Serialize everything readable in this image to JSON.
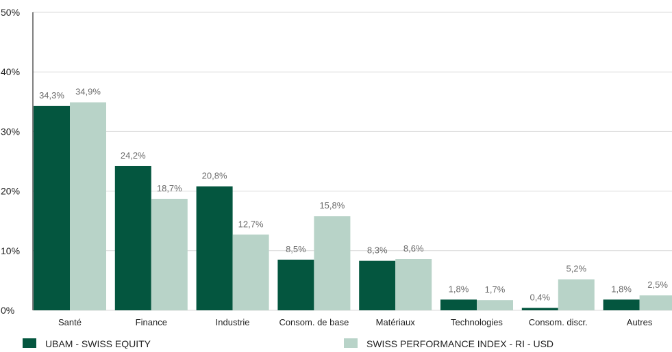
{
  "chart_data": {
    "type": "bar",
    "categories": [
      "Santé",
      "Finance",
      "Industrie",
      "Consom. de base",
      "Matériaux",
      "Technologies",
      "Consom. discr.",
      "Autres"
    ],
    "series": [
      {
        "name": "UBAM - SWISS EQUITY",
        "color": "#04563f",
        "values": [
          34.3,
          24.2,
          20.8,
          8.5,
          8.3,
          1.8,
          0.4,
          1.8
        ],
        "labels": [
          "34,3%",
          "24,2%",
          "20,8%",
          "8,5%",
          "8,3%",
          "1,8%",
          "0,4%",
          "1,8%"
        ]
      },
      {
        "name": "SWISS PERFORMANCE INDEX - RI - USD",
        "color": "#b8d3c8",
        "values": [
          34.9,
          18.7,
          12.7,
          15.8,
          8.6,
          1.7,
          5.2,
          2.5
        ],
        "labels": [
          "34,9%",
          "18,7%",
          "12,7%",
          "15,8%",
          "8,6%",
          "1,7%",
          "5,2%",
          "2,5%"
        ]
      }
    ],
    "ylim": [
      0,
      50
    ],
    "yticks": [
      0,
      10,
      20,
      30,
      40,
      50
    ],
    "ytick_labels": [
      "0%",
      "10%",
      "20%",
      "30%",
      "40%",
      "50%"
    ],
    "grid": true,
    "legend": "bottom",
    "colors": {
      "grid": "#d9d9d9",
      "axis": "#000000",
      "label_text": "#6b6b6b",
      "tick_text": "#222222"
    }
  }
}
